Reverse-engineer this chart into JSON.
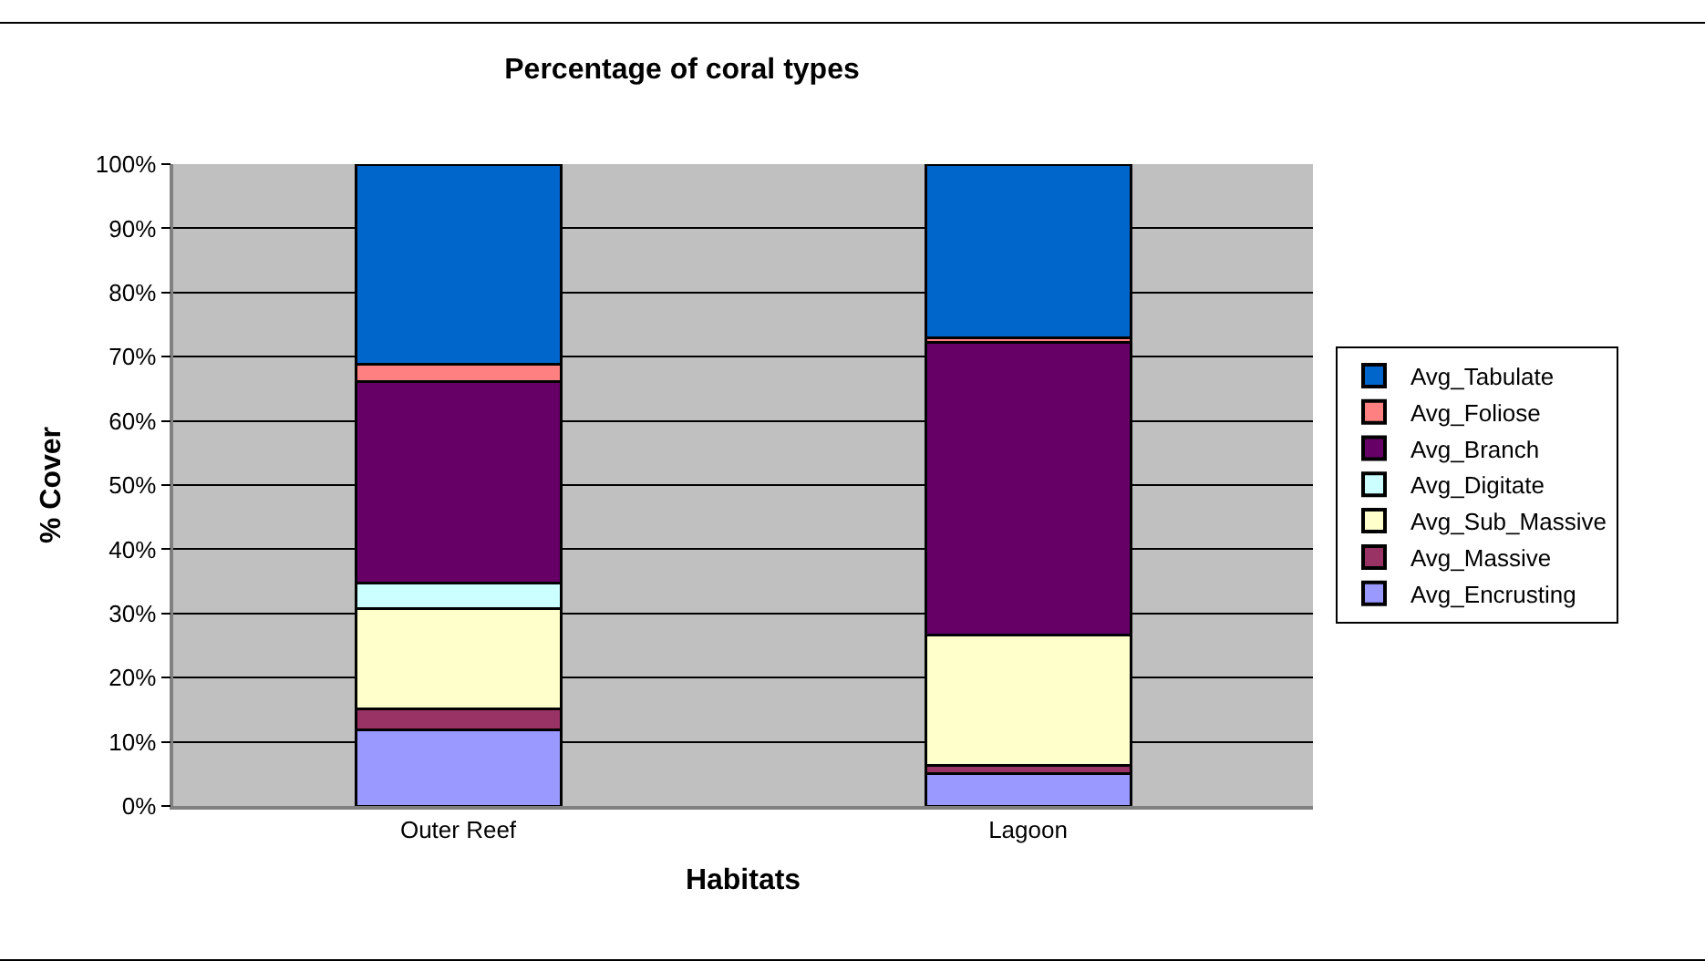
{
  "chart_data": {
    "type": "bar",
    "stacked": true,
    "title": "Percentage of coral types",
    "xlabel": "Habitats",
    "ylabel": "% Cover",
    "categories": [
      "Outer Reef",
      "Lagoon"
    ],
    "series": [
      {
        "name": "Avg_Encrusting",
        "color": "#9999ff",
        "values": [
          11.8,
          5.0
        ]
      },
      {
        "name": "Avg_Massive",
        "color": "#993366",
        "values": [
          3.4,
          1.3
        ]
      },
      {
        "name": "Avg_Sub_Massive",
        "color": "#ffffcc",
        "values": [
          15.6,
          20.4
        ]
      },
      {
        "name": "Avg_Digitate",
        "color": "#ccffff",
        "values": [
          4.0,
          0
        ]
      },
      {
        "name": "Avg_Branch",
        "color": "#660066",
        "values": [
          31.3,
          45.6
        ]
      },
      {
        "name": "Avg_Foliose",
        "color": "#ff8080",
        "values": [
          2.7,
          0.7
        ]
      },
      {
        "name": "Avg_Tabulate",
        "color": "#0066cc",
        "values": [
          31.2,
          27.0
        ]
      }
    ],
    "ylim": [
      0,
      100
    ],
    "yticks": [
      {
        "value": 0,
        "label": "0%"
      },
      {
        "value": 10,
        "label": "10%"
      },
      {
        "value": 20,
        "label": "20%"
      },
      {
        "value": 30,
        "label": "30%"
      },
      {
        "value": 40,
        "label": "40%"
      },
      {
        "value": 50,
        "label": "50%"
      },
      {
        "value": 60,
        "label": "60%"
      },
      {
        "value": 70,
        "label": "70%"
      },
      {
        "value": 80,
        "label": "80%"
      },
      {
        "value": 90,
        "label": "90%"
      },
      {
        "value": 100,
        "label": "100%"
      }
    ],
    "grid": "y",
    "legend": "right"
  }
}
